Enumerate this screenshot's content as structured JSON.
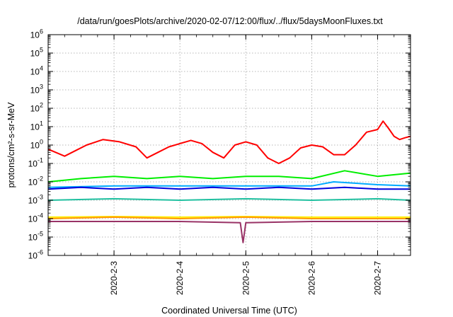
{
  "chart_data": {
    "type": "line",
    "title": "/data/run/goesPlots/archive/2020-02-07/12:00/flux/../flux/5daysMoonFluxes.txt",
    "xlabel": "Coordinated Universal Time (UTC)",
    "ylabel": "protons/cm²-s-sr-MeV",
    "y_scale": "log",
    "ylim": [
      1e-06,
      1000000.0
    ],
    "xlim": [
      "2020-02-02 00:00",
      "2020-02-07 12:00"
    ],
    "grid": true,
    "legend": "none",
    "x_ticks": [
      "2020-2-3",
      "2020-2-4",
      "2020-2-5",
      "2020-2-6",
      "2020-2-7"
    ],
    "y_ticks": [
      {
        "base": "10",
        "exp": "6"
      },
      {
        "base": "10",
        "exp": "5"
      },
      {
        "base": "10",
        "exp": "4"
      },
      {
        "base": "10",
        "exp": "3"
      },
      {
        "base": "10",
        "exp": "2"
      },
      {
        "base": "10",
        "exp": "1"
      },
      {
        "base": "10",
        "exp": "0"
      },
      {
        "base": "10",
        "exp": "-1"
      },
      {
        "base": "10",
        "exp": "-2"
      },
      {
        "base": "10",
        "exp": "-3"
      },
      {
        "base": "10",
        "exp": "-4"
      },
      {
        "base": "10",
        "exp": "-5"
      },
      {
        "base": "10",
        "exp": "-6"
      }
    ],
    "series": [
      {
        "color": "#ff0000",
        "points": [
          [
            "2020-02-02 00:00",
            0.6
          ],
          [
            "2020-02-02 06:00",
            0.25
          ],
          [
            "2020-02-02 10:00",
            0.5
          ],
          [
            "2020-02-02 14:00",
            1.0
          ],
          [
            "2020-02-02 20:00",
            2.0
          ],
          [
            "2020-02-03 02:00",
            1.5
          ],
          [
            "2020-02-03 08:00",
            0.8
          ],
          [
            "2020-02-03 12:00",
            0.2
          ],
          [
            "2020-02-03 16:00",
            0.4
          ],
          [
            "2020-02-03 20:00",
            0.8
          ],
          [
            "2020-02-04 00:00",
            1.2
          ],
          [
            "2020-02-04 04:00",
            1.8
          ],
          [
            "2020-02-04 08:00",
            1.2
          ],
          [
            "2020-02-04 12:00",
            0.4
          ],
          [
            "2020-02-04 16:00",
            0.2
          ],
          [
            "2020-02-04 20:00",
            1.0
          ],
          [
            "2020-02-05 00:00",
            1.5
          ],
          [
            "2020-02-05 04:00",
            1.0
          ],
          [
            "2020-02-05 08:00",
            0.2
          ],
          [
            "2020-02-05 12:00",
            0.1
          ],
          [
            "2020-02-05 16:00",
            0.2
          ],
          [
            "2020-02-05 20:00",
            0.7
          ],
          [
            "2020-02-06 00:00",
            1.0
          ],
          [
            "2020-02-06 04:00",
            0.8
          ],
          [
            "2020-02-06 08:00",
            0.3
          ],
          [
            "2020-02-06 12:00",
            0.3
          ],
          [
            "2020-02-06 16:00",
            1.0
          ],
          [
            "2020-02-06 20:00",
            5.0
          ],
          [
            "2020-02-07 00:00",
            7.0
          ],
          [
            "2020-02-07 02:00",
            20.0
          ],
          [
            "2020-02-07 04:00",
            8.0
          ],
          [
            "2020-02-07 06:00",
            3.0
          ],
          [
            "2020-02-07 08:00",
            2.0
          ],
          [
            "2020-02-07 10:00",
            2.5
          ],
          [
            "2020-02-07 12:00",
            3.0
          ]
        ]
      },
      {
        "color": "#00ee00",
        "points": [
          [
            "2020-02-02 00:00",
            0.01
          ],
          [
            "2020-02-02 12:00",
            0.015
          ],
          [
            "2020-02-03 00:00",
            0.02
          ],
          [
            "2020-02-03 12:00",
            0.015
          ],
          [
            "2020-02-04 00:00",
            0.02
          ],
          [
            "2020-02-04 12:00",
            0.015
          ],
          [
            "2020-02-05 00:00",
            0.02
          ],
          [
            "2020-02-05 12:00",
            0.02
          ],
          [
            "2020-02-06 00:00",
            0.015
          ],
          [
            "2020-02-06 12:00",
            0.04
          ],
          [
            "2020-02-07 00:00",
            0.02
          ],
          [
            "2020-02-07 12:00",
            0.03
          ]
        ]
      },
      {
        "color": "#00aaff",
        "points": [
          [
            "2020-02-02 00:00",
            0.005
          ],
          [
            "2020-02-03 00:00",
            0.006
          ],
          [
            "2020-02-04 00:00",
            0.006
          ],
          [
            "2020-02-05 00:00",
            0.006
          ],
          [
            "2020-02-06 00:00",
            0.006
          ],
          [
            "2020-02-06 08:00",
            0.01
          ],
          [
            "2020-02-07 00:00",
            0.007
          ],
          [
            "2020-02-07 12:00",
            0.006
          ]
        ]
      },
      {
        "color": "#0000dd",
        "points": [
          [
            "2020-02-02 00:00",
            0.004
          ],
          [
            "2020-02-02 12:00",
            0.005
          ],
          [
            "2020-02-03 00:00",
            0.004
          ],
          [
            "2020-02-03 12:00",
            0.005
          ],
          [
            "2020-02-04 00:00",
            0.004
          ],
          [
            "2020-02-04 12:00",
            0.005
          ],
          [
            "2020-02-05 00:00",
            0.004
          ],
          [
            "2020-02-05 12:00",
            0.005
          ],
          [
            "2020-02-06 00:00",
            0.004
          ],
          [
            "2020-02-06 12:00",
            0.005
          ],
          [
            "2020-02-07 00:00",
            0.004
          ],
          [
            "2020-02-07 12:00",
            0.004
          ]
        ]
      },
      {
        "color": "#20c0a0",
        "points": [
          [
            "2020-02-02 00:00",
            0.001
          ],
          [
            "2020-02-03 00:00",
            0.0012
          ],
          [
            "2020-02-04 00:00",
            0.001
          ],
          [
            "2020-02-05 00:00",
            0.0012
          ],
          [
            "2020-02-06 00:00",
            0.001
          ],
          [
            "2020-02-07 00:00",
            0.0012
          ],
          [
            "2020-02-07 12:00",
            0.001
          ]
        ]
      },
      {
        "color": "#ffee00",
        "points": [
          [
            "2020-02-02 00:00",
            0.00012
          ],
          [
            "2020-02-03 00:00",
            0.00013
          ],
          [
            "2020-02-04 00:00",
            0.00012
          ],
          [
            "2020-02-05 00:00",
            0.00013
          ],
          [
            "2020-02-06 00:00",
            0.00012
          ],
          [
            "2020-02-07 00:00",
            0.00012
          ],
          [
            "2020-02-07 12:00",
            0.00012
          ]
        ]
      },
      {
        "color": "#ff9900",
        "points": [
          [
            "2020-02-02 00:00",
            0.0001
          ],
          [
            "2020-02-03 00:00",
            0.00012
          ],
          [
            "2020-02-04 00:00",
            0.0001
          ],
          [
            "2020-02-05 00:00",
            0.00012
          ],
          [
            "2020-02-06 00:00",
            0.0001
          ],
          [
            "2020-02-07 00:00",
            0.0001
          ],
          [
            "2020-02-07 12:00",
            0.0001
          ]
        ]
      },
      {
        "color": "#993366",
        "points": [
          [
            "2020-02-02 00:00",
            7e-05
          ],
          [
            "2020-02-03 00:00",
            7e-05
          ],
          [
            "2020-02-04 00:00",
            7e-05
          ],
          [
            "2020-02-04 22:00",
            6e-05
          ],
          [
            "2020-02-04 23:00",
            5e-06
          ],
          [
            "2020-02-05 00:00",
            6e-05
          ],
          [
            "2020-02-06 00:00",
            7e-05
          ],
          [
            "2020-02-07 00:00",
            7e-05
          ],
          [
            "2020-02-07 12:00",
            7e-05
          ]
        ]
      }
    ]
  }
}
